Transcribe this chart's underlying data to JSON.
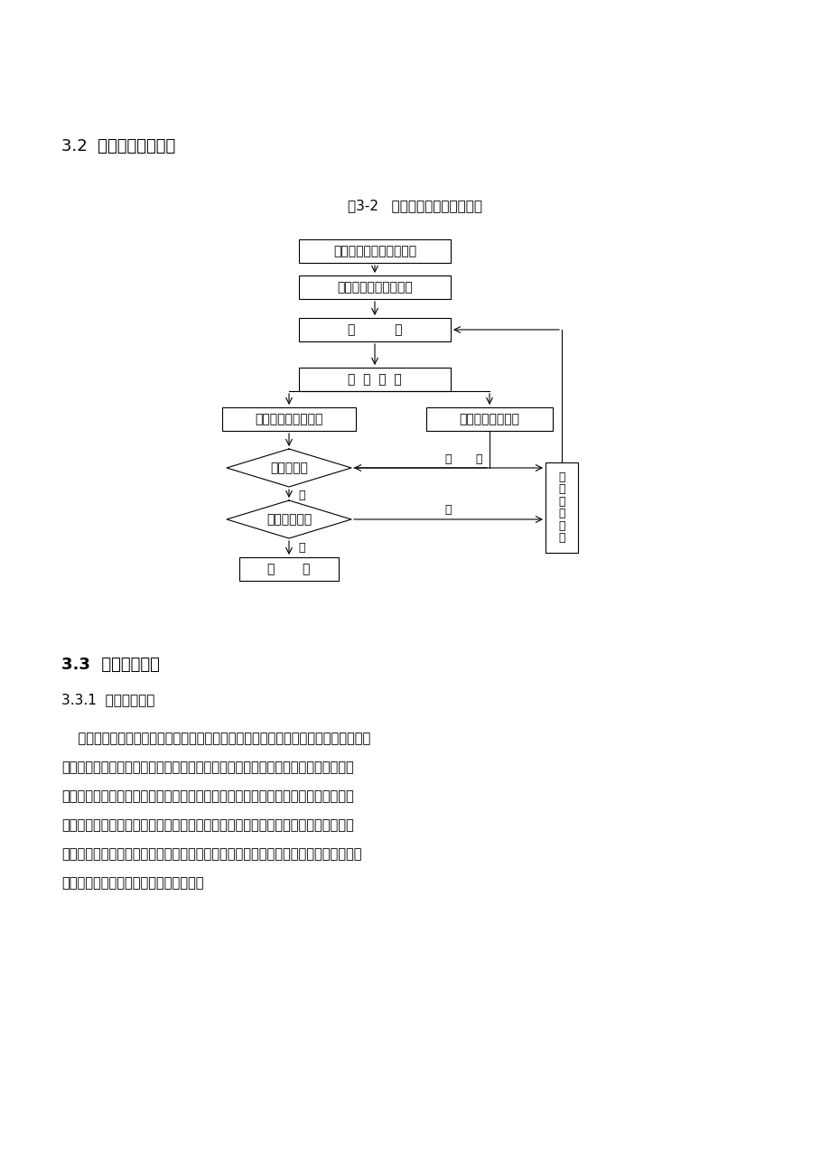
{
  "page_bg": "#ffffff",
  "title_32": "3.2  监控量测施工工艺",
  "fig_caption": "图3-2   监控量测施工工艺流程图",
  "section_33": "3.3  监控量测方法",
  "section_331": "3.3.1  洞内、外观察",
  "para_lines": [
    "    施工过程中应进行洞内、外观察。洞内观察可分开挖工作面观察和已施工地段观察两",
    "部分。开挖工作面观察应在每次开挖后进行，及时绘制开挖工作面地质素描图、数码",
    "成像，填写开挖工作面地质状况记录表，并于勘察资料进行对比。已施工地段观察应",
    "记录喷射混凝土、锚杆、钢架变形和二次衬砌等的工作状态。洞外观察重点在洞口段",
    "和洞身浅埋段，记录地表开裂、地表变形、边坡及仰坡稳定状态、地表水渗漏情况等，",
    "同时还应对地面建（构）筑物进行观察。"
  ]
}
